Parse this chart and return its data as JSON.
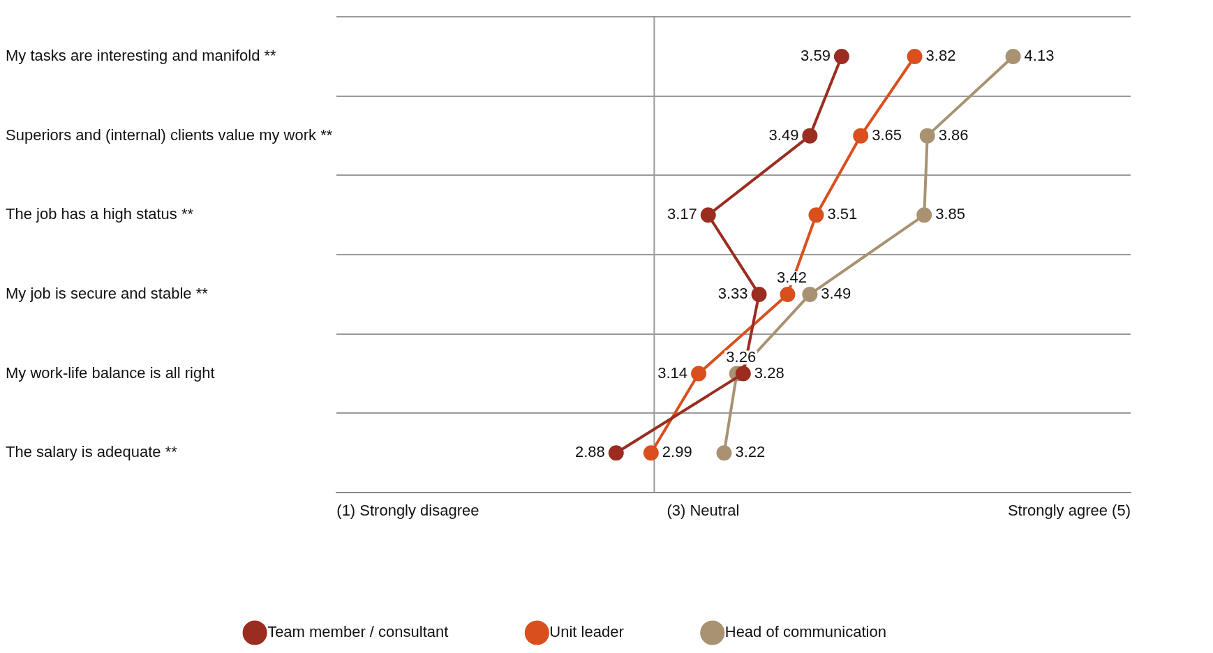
{
  "chart_data": {
    "type": "line",
    "orientation": "horizontal",
    "categories": [
      "My tasks are interesting and manifold **",
      "Superiors and (internal) clients value my work **",
      "The job has a high status **",
      "My job is secure and stable **",
      "My work-life balance is all right",
      "The salary is adequate **"
    ],
    "series": [
      {
        "name": "Team member / consultant",
        "color": "#9b2d20",
        "values": [
          3.59,
          3.49,
          3.17,
          3.33,
          3.28,
          2.88
        ]
      },
      {
        "name": "Unit leader",
        "color": "#d9501e",
        "values": [
          3.82,
          3.65,
          3.51,
          3.42,
          3.14,
          2.99
        ]
      },
      {
        "name": "Head of communication",
        "color": "#a89272",
        "values": [
          4.13,
          3.86,
          3.85,
          3.49,
          3.26,
          3.22
        ]
      }
    ],
    "xlim": [
      2,
      4.5
    ],
    "annotations": [
      "(1) Strongly disagree",
      "(3) Neutral",
      "Strongly agree (5)"
    ],
    "grid": "y",
    "ref_lines": [
      {
        "axis": "x",
        "value": 3
      }
    ],
    "legend": "bottom",
    "marker": "circle",
    "data_labels": true
  }
}
